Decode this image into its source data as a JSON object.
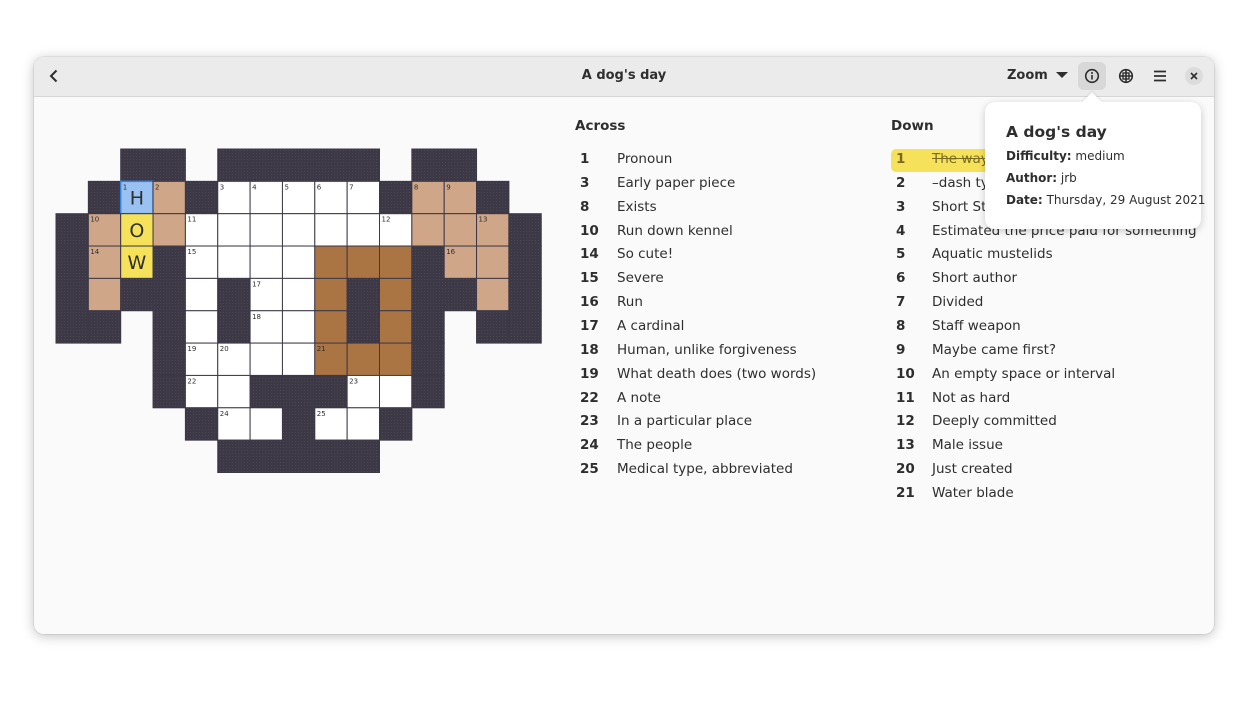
{
  "header": {
    "title": "A dog's day",
    "zoom": "Zoom"
  },
  "grid": {
    "numbers": [
      1,
      2,
      3,
      4,
      5,
      6,
      7,
      8,
      9,
      10,
      11,
      12,
      13,
      14,
      15,
      16,
      17,
      18,
      19,
      20,
      21,
      22,
      23,
      24,
      25
    ],
    "letters": [
      "H",
      "O",
      "W"
    ]
  },
  "across": {
    "heading": "Across",
    "clues": [
      {
        "number": 1,
        "text": "Pronoun"
      },
      {
        "number": 3,
        "text": "Early paper piece"
      },
      {
        "number": 8,
        "text": "Exists"
      },
      {
        "number": 10,
        "text": "Run down kennel"
      },
      {
        "number": 14,
        "text": "So cute!"
      },
      {
        "number": 15,
        "text": "Severe"
      },
      {
        "number": 16,
        "text": "Run"
      },
      {
        "number": 17,
        "text": "A cardinal"
      },
      {
        "number": 18,
        "text": "Human, unlike forgiveness"
      },
      {
        "number": 19,
        "text": "What death does (two words)"
      },
      {
        "number": 22,
        "text": "A note"
      },
      {
        "number": 23,
        "text": "In a particular place"
      },
      {
        "number": 24,
        "text": "The people"
      },
      {
        "number": 25,
        "text": "Medical type, abbreviated"
      }
    ]
  },
  "down": {
    "heading": "Down",
    "clues": [
      {
        "number": 1,
        "text": "The way"
      },
      {
        "number": 2,
        "text": "–dash typ"
      },
      {
        "number": 3,
        "text": "Short Ste"
      },
      {
        "number": 4,
        "text": "Estimated the price paid for something"
      },
      {
        "number": 5,
        "text": "Aquatic mustelids"
      },
      {
        "number": 6,
        "text": "Short author"
      },
      {
        "number": 7,
        "text": "Divided"
      },
      {
        "number": 8,
        "text": "Staff weapon"
      },
      {
        "number": 9,
        "text": "Maybe came first?"
      },
      {
        "number": 10,
        "text": "An empty space or interval"
      },
      {
        "number": 11,
        "text": "Not as hard"
      },
      {
        "number": 12,
        "text": "Deeply committed"
      },
      {
        "number": 13,
        "text": "Male issue"
      },
      {
        "number": 20,
        "text": "Just created"
      },
      {
        "number": 21,
        "text": "Water blade"
      }
    ]
  },
  "popover": {
    "title": "A dog's day",
    "rows": [
      {
        "label": "Difficulty:",
        "value": "medium"
      },
      {
        "label": "Author:",
        "value": "jrb"
      },
      {
        "label": "Date:",
        "value": "Thursday, 29 August 2021"
      }
    ]
  }
}
